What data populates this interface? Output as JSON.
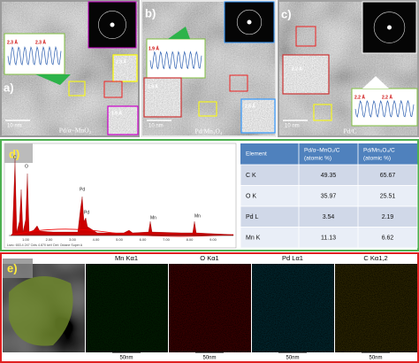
{
  "panels": [
    {
      "label": "a)",
      "caption": "Pd/α−MnO₂",
      "scale": "10 nm",
      "lattice": [
        "2.3 Å",
        "2.3 Å",
        "2.3 Å",
        "1.9 Å"
      ]
    },
    {
      "label": "b)",
      "caption": "Pd/Mn₃O₄",
      "scale": "10 nm",
      "lattice": [
        "1.9 Å",
        "1.9 Å",
        "2.8 Å"
      ]
    },
    {
      "label": "c)",
      "caption": "Pd/C",
      "scale": "10 nm",
      "lattice": [
        "2.2 Å",
        "2.2 Å",
        "2.2 Å"
      ]
    }
  ],
  "eds": {
    "label": "d)",
    "peaks": [
      "C",
      "O",
      "Pd",
      "Pd",
      "Mn",
      "Mn"
    ],
    "ticks": [
      "1.00",
      "2.00",
      "3.00",
      "4.00",
      "5.00",
      "6.00",
      "7.00",
      "8.00",
      "9.00"
    ],
    "footer": "Lsec: 653.4   247 Cnts   4.870 keV   Det: Octane Super A"
  },
  "table": {
    "header": [
      {
        "name": "Element"
      },
      {
        "name": "Pd/α−MnO₂/C",
        "unit": "(atomic %)"
      },
      {
        "name": "Pd/Mn₃O₄/C",
        "unit": "(atomic %)"
      }
    ],
    "rows": [
      [
        "C K",
        49.35,
        65.67
      ],
      [
        "O K",
        35.97,
        25.51
      ],
      [
        "Pd L",
        3.54,
        2.19
      ],
      [
        "Mn K",
        11.13,
        6.62
      ]
    ]
  },
  "mapping": {
    "label": "e)",
    "titles": [
      "Mn Kα1",
      "O Kα1",
      "Pd Lα1",
      "C Kα1,2"
    ],
    "scales": [
      "50nm",
      "50nm",
      "50nm",
      "50nm"
    ]
  }
}
